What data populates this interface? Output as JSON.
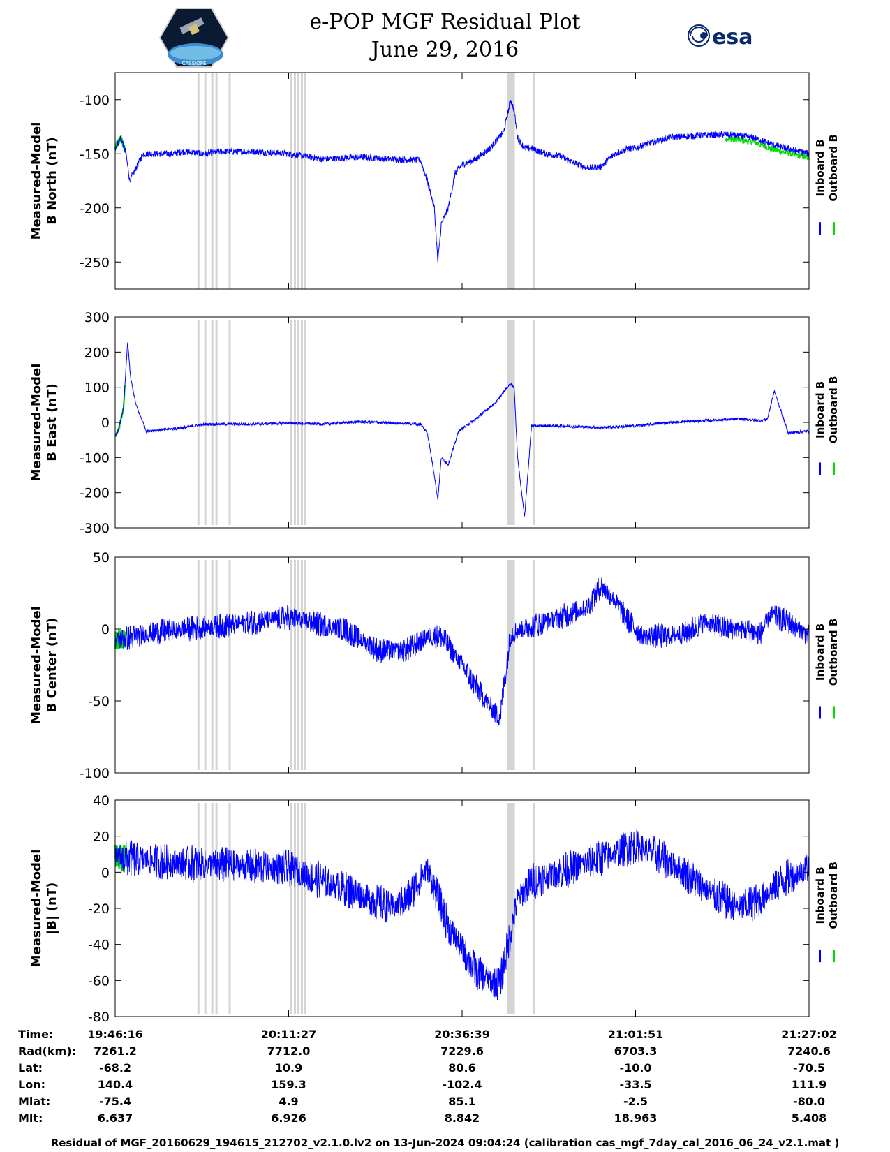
{
  "title": "e-POP MGF Residual Plot",
  "subtitle": "June 29, 2016",
  "logos": {
    "left": "cassiope-mission-logo",
    "right": "esa-logo",
    "right_text": "esa",
    "left_text": "CASSIOPE"
  },
  "colors": {
    "inboard": "#0000ff",
    "outboard": "#00dd00",
    "gap": "#d4d4d4",
    "frame": "#000000"
  },
  "chart_data": [
    {
      "type": "line",
      "ylabel_line1": "Measured-Model",
      "ylabel_line2": "B North (nT)",
      "ylim": [
        -275,
        -75
      ],
      "yticks": [
        -100,
        -150,
        -200,
        -250
      ],
      "tick_labels": [
        "-100",
        "-150",
        "-200",
        "-250"
      ],
      "series": [
        {
          "name": "Inboard B",
          "color": "#0000ff"
        },
        {
          "name": "Outboard B",
          "color": "#00dd00"
        }
      ],
      "x": [
        0,
        0.8,
        1.5,
        2.1,
        4,
        8,
        10,
        13,
        15,
        20,
        25,
        30,
        35,
        40,
        44,
        45,
        46,
        46.5,
        47,
        48,
        49,
        50,
        52,
        54,
        56,
        57,
        57.5,
        58,
        59,
        60,
        62,
        64,
        66,
        68,
        70,
        72,
        74,
        75,
        77,
        80,
        84,
        88,
        92,
        95,
        100
      ],
      "y": [
        -145,
        -135,
        -148,
        -175,
        -150,
        -150,
        -148,
        -150,
        -148,
        -148,
        -150,
        -155,
        -153,
        -155,
        -156,
        -175,
        -200,
        -250,
        -215,
        -200,
        -168,
        -160,
        -155,
        -145,
        -130,
        -100,
        -110,
        -135,
        -145,
        -145,
        -150,
        -152,
        -158,
        -163,
        -162,
        -150,
        -145,
        -145,
        -140,
        -135,
        -133,
        -132,
        -135,
        -142,
        -150
      ],
      "noise": 3,
      "x_tick_labels": [
        "19:46:16",
        "20:11:27",
        "20:36:39",
        "21:01:51",
        "21:27:02"
      ],
      "legend_placement": "right"
    },
    {
      "type": "line",
      "ylabel_line1": "Measured-Model",
      "ylabel_line2": "B East (nT)",
      "ylim": [
        -300,
        300
      ],
      "yticks": [
        300,
        200,
        100,
        0,
        -100,
        -200,
        -300
      ],
      "tick_labels": [
        "300",
        "200",
        "100",
        "0",
        "-100",
        "-200",
        "-300"
      ],
      "series": [
        {
          "name": "Inboard B",
          "color": "#0000ff"
        },
        {
          "name": "Outboard B",
          "color": "#00dd00"
        }
      ],
      "x": [
        0,
        0.5,
        1.2,
        1.8,
        2.2,
        3,
        4.5,
        10,
        13,
        20,
        25,
        30,
        35,
        44,
        45,
        46,
        46.5,
        47,
        48,
        49.5,
        52,
        55,
        56.5,
        57,
        57.5,
        58,
        59,
        60,
        64,
        70,
        75,
        80,
        85,
        90,
        93,
        94,
        94.5,
        95,
        97,
        100
      ],
      "y": [
        -40,
        -20,
        40,
        230,
        130,
        50,
        -25,
        -15,
        -5,
        -5,
        -2,
        -5,
        2,
        -5,
        -30,
        -150,
        -220,
        -100,
        -120,
        -25,
        10,
        60,
        100,
        110,
        100,
        -100,
        -270,
        -10,
        -10,
        -15,
        -10,
        0,
        5,
        10,
        5,
        10,
        50,
        90,
        -30,
        -25
      ],
      "noise": 4,
      "x_tick_labels": [
        "19:46:16",
        "20:11:27",
        "20:36:39",
        "21:01:51",
        "21:27:02"
      ],
      "legend_placement": "right"
    },
    {
      "type": "line",
      "ylabel_line1": "Measured-Model",
      "ylabel_line2": "B Center (nT)",
      "ylim": [
        -100,
        50
      ],
      "yticks": [
        50,
        0,
        -50,
        -100
      ],
      "tick_labels": [
        "50",
        "0",
        "-50",
        "-100"
      ],
      "series": [
        {
          "name": "Inboard B",
          "color": "#0000ff"
        },
        {
          "name": "Outboard B",
          "color": "#00dd00"
        }
      ],
      "x": [
        0,
        5,
        10,
        15,
        20,
        25,
        28,
        33,
        38,
        42,
        45,
        47,
        50,
        52,
        55,
        55.5,
        57,
        60,
        64,
        68,
        70,
        72,
        74,
        76,
        79,
        82,
        85,
        88,
        90,
        93,
        94.5,
        97,
        100
      ],
      "y": [
        -8,
        -3,
        0,
        2,
        5,
        8,
        5,
        0,
        -15,
        -15,
        -5,
        -5,
        -25,
        -40,
        -60,
        -60,
        -3,
        2,
        8,
        15,
        30,
        20,
        5,
        -5,
        -5,
        -3,
        5,
        0,
        0,
        -3,
        10,
        5,
        -5
      ],
      "noise": 6,
      "x_tick_labels": [
        "19:46:16",
        "20:11:27",
        "20:36:39",
        "21:01:51",
        "21:27:02"
      ],
      "legend_placement": "right"
    },
    {
      "type": "line",
      "ylabel_line1": "Measured-Model",
      "ylabel_line2": "|B| (nT)",
      "ylim": [
        -80,
        40
      ],
      "yticks": [
        40,
        20,
        0,
        -20,
        -40,
        -60,
        -80
      ],
      "tick_labels": [
        "40",
        "20",
        "0",
        "-20",
        "-40",
        "-60",
        "-80"
      ],
      "series": [
        {
          "name": "Inboard B",
          "color": "#0000ff"
        },
        {
          "name": "Outboard B",
          "color": "#00dd00"
        }
      ],
      "x": [
        0,
        10,
        20,
        25,
        30,
        35,
        40,
        42,
        45,
        48,
        52,
        55,
        55.5,
        58,
        60,
        64,
        70,
        75,
        78,
        82,
        86,
        90,
        93,
        96,
        100
      ],
      "y": [
        8,
        5,
        3,
        2,
        -5,
        -12,
        -20,
        -15,
        2,
        -30,
        -55,
        -62,
        -60,
        -15,
        -5,
        0,
        8,
        15,
        10,
        0,
        -12,
        -20,
        -15,
        -5,
        3
      ],
      "noise": 7,
      "x_tick_labels": [
        "19:46:16",
        "20:11:27",
        "20:36:39",
        "21:01:51",
        "21:27:02"
      ],
      "legend_placement": "right"
    }
  ],
  "gap_positions": [
    12,
    13,
    14,
    14.6,
    16.5,
    25.4,
    25.9,
    26.4,
    26.9,
    27.4,
    56.8,
    57.3,
    60.4
  ],
  "info": {
    "labels": [
      "Time:",
      "Rad(km):",
      "Lat:",
      "Lon:",
      "Mlat:",
      "Mlt:"
    ],
    "columns": [
      [
        "19:46:16",
        "7261.2",
        "-68.2",
        "140.4",
        "-75.4",
        "6.637"
      ],
      [
        "20:11:27",
        "7712.0",
        "10.9",
        "159.3",
        "4.9",
        "6.926"
      ],
      [
        "20:36:39",
        "7229.6",
        "80.6",
        "-102.4",
        "85.1",
        "8.842"
      ],
      [
        "21:01:51",
        "6703.3",
        "-10.0",
        "-33.5",
        "-2.5",
        "18.963"
      ],
      [
        "21:27:02",
        "7240.6",
        "-70.5",
        "111.9",
        "-80.0",
        "5.408"
      ]
    ]
  },
  "footer": "Residual of MGF_20160629_194615_212702_v2.1.0.lv2 on 13-Jun-2024 09:04:24 (calibration cas_mgf_7day_cal_2016_06_24_v2.1.mat )"
}
